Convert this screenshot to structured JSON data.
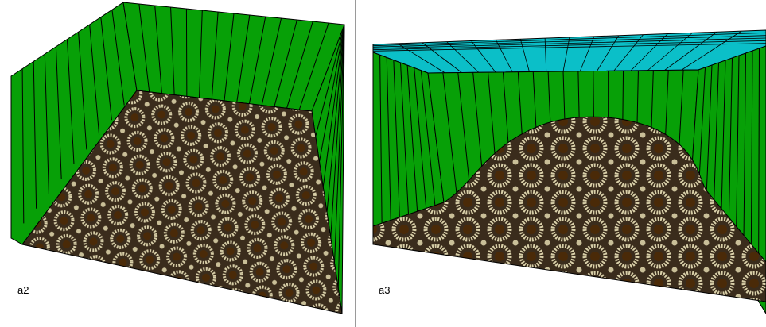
{
  "panels": [
    {
      "label": "a2"
    },
    {
      "label": "a3"
    }
  ],
  "colors": {
    "wall": "#07a007",
    "ceiling": "#0bbfc8",
    "floor_base": "#3a2c1c",
    "floor_ring": "#d8cfa8",
    "floor_dot": "#4a2a08",
    "line": "#000000"
  }
}
